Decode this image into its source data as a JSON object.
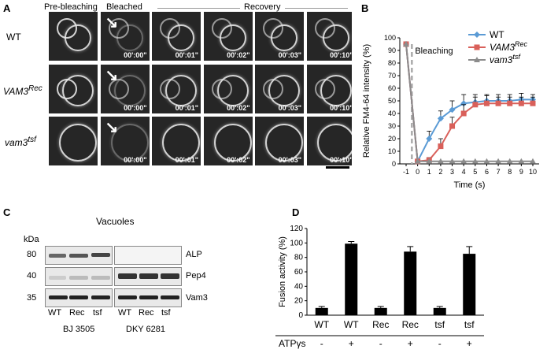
{
  "panelA": {
    "label": "A",
    "headers": {
      "pre": "Pre-bleaching",
      "bleached": "Bleached",
      "recovery": "Recovery"
    },
    "rows": [
      {
        "name": "WT",
        "sup": ""
      },
      {
        "name": "VAM3",
        "sup": "Rec"
      },
      {
        "name": "vam3",
        "sup": "tsf"
      }
    ],
    "timestamps": [
      "00':00\"",
      "00':01\"",
      "00':02\"",
      "00':03\"",
      "00':10\""
    ]
  },
  "panelB": {
    "label": "B",
    "annotation": "Bleaching",
    "legend": [
      {
        "name": "WT",
        "sup": "",
        "color": "#5b9bd5"
      },
      {
        "name": "VAM3",
        "sup": "Rec",
        "color": "#d9605a"
      },
      {
        "name": "vam3",
        "sup": "tsf",
        "color": "#8c8c8c"
      }
    ]
  },
  "panelC": {
    "label": "C",
    "title": "Vacuoles",
    "kda_label": "kDa",
    "mw": [
      "80",
      "40",
      "35"
    ],
    "proteins": [
      "ALP",
      "Pep4",
      "Vam3"
    ],
    "lanes_left": [
      "WT",
      "Rec",
      "tsf"
    ],
    "lanes_right": [
      "WT",
      "Rec",
      "tsf"
    ],
    "strain_left": "BJ 3505",
    "strain_right": "DKY 6281"
  },
  "panelD": {
    "label": "D",
    "atp_label": "ATPγs"
  },
  "chart_data": [
    {
      "type": "line",
      "title": "",
      "xlabel": "Time (s)",
      "ylabel": "Relative FM4-64 intensity (%)",
      "x": [
        "-1",
        "0",
        "1",
        "2",
        "3",
        "4",
        "5",
        "6",
        "7",
        "8",
        "9",
        "10"
      ],
      "ylim": [
        0,
        100
      ],
      "yticks": [
        0,
        10,
        20,
        30,
        40,
        50,
        60,
        70,
        80,
        90,
        100
      ],
      "series": [
        {
          "name": "WT",
          "color": "#5b9bd5",
          "marker": "diamond",
          "values": [
            95,
            2,
            20,
            36,
            43,
            48,
            49,
            50,
            50,
            50,
            51,
            51
          ],
          "errors": [
            0,
            1,
            6,
            6,
            7,
            7,
            6,
            5,
            5,
            5,
            5,
            4
          ]
        },
        {
          "name": "VAM3Rec",
          "color": "#d9605a",
          "marker": "square",
          "values": [
            95,
            2,
            3,
            14,
            30,
            40,
            47,
            48,
            48,
            48,
            48,
            48
          ],
          "errors": [
            0,
            1,
            2,
            6,
            7,
            7,
            6,
            6,
            5,
            5,
            5,
            5
          ]
        },
        {
          "name": "vam3tsf",
          "color": "#8c8c8c",
          "marker": "triangle",
          "values": [
            95,
            2,
            2,
            2,
            2,
            2,
            2,
            2,
            2,
            2,
            2,
            2
          ],
          "errors": [
            0,
            0,
            0,
            0,
            0,
            0,
            0,
            0,
            0,
            0,
            0,
            0
          ]
        }
      ]
    },
    {
      "type": "bar",
      "title": "",
      "ylabel": "Fusion activity (%)",
      "categories": [
        "WT",
        "WT",
        "Rec",
        "Rec",
        "tsf",
        "tsf"
      ],
      "atp": [
        "-",
        "+",
        "-",
        "+",
        "-",
        "+"
      ],
      "values": [
        10,
        99,
        10,
        88,
        10,
        85
      ],
      "errors": [
        2,
        3,
        2,
        7,
        2,
        10
      ],
      "ylim": [
        0,
        120
      ],
      "yticks": [
        0,
        20,
        40,
        60,
        80,
        100,
        120
      ]
    }
  ]
}
